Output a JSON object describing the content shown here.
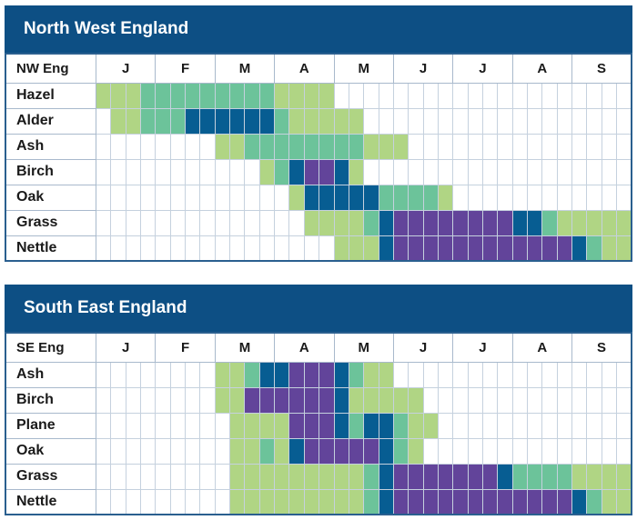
{
  "colors": {
    "header_bg": "#0d4f84",
    "level_0": "#ffffff",
    "level_1": "#b0d584",
    "level_2": "#6cc39a",
    "level_3": "#075d92",
    "level_4": "#62449a"
  },
  "chart_data": [
    {
      "type": "heatmap",
      "title": "North West England",
      "corner_label": "NW Eng",
      "months": [
        {
          "label": "J",
          "span": 4
        },
        {
          "label": "F",
          "span": 4
        },
        {
          "label": "M",
          "span": 4
        },
        {
          "label": "A",
          "span": 4
        },
        {
          "label": "M",
          "span": 4
        },
        {
          "label": "J",
          "span": 4
        },
        {
          "label": "J",
          "span": 4
        },
        {
          "label": "A",
          "span": 4
        },
        {
          "label": "S",
          "span": 4
        }
      ],
      "rows": [
        {
          "name": "Hazel",
          "levels": [
            1,
            1,
            1,
            2,
            2,
            2,
            2,
            2,
            2,
            2,
            2,
            2,
            1,
            1,
            1,
            1,
            0,
            0,
            0,
            0,
            0,
            0,
            0,
            0,
            0,
            0,
            0,
            0,
            0,
            0,
            0,
            0,
            0,
            0,
            0,
            0
          ]
        },
        {
          "name": "Alder",
          "levels": [
            0,
            1,
            1,
            2,
            2,
            2,
            3,
            3,
            3,
            3,
            3,
            3,
            2,
            1,
            1,
            1,
            1,
            1,
            0,
            0,
            0,
            0,
            0,
            0,
            0,
            0,
            0,
            0,
            0,
            0,
            0,
            0,
            0,
            0,
            0,
            0
          ]
        },
        {
          "name": "Ash",
          "levels": [
            0,
            0,
            0,
            0,
            0,
            0,
            0,
            0,
            1,
            1,
            2,
            2,
            2,
            2,
            2,
            2,
            2,
            2,
            1,
            1,
            1,
            0,
            0,
            0,
            0,
            0,
            0,
            0,
            0,
            0,
            0,
            0,
            0,
            0,
            0,
            0
          ]
        },
        {
          "name": "Birch",
          "levels": [
            0,
            0,
            0,
            0,
            0,
            0,
            0,
            0,
            0,
            0,
            0,
            1,
            2,
            3,
            4,
            4,
            3,
            1,
            0,
            0,
            0,
            0,
            0,
            0,
            0,
            0,
            0,
            0,
            0,
            0,
            0,
            0,
            0,
            0,
            0,
            0
          ]
        },
        {
          "name": "Oak",
          "levels": [
            0,
            0,
            0,
            0,
            0,
            0,
            0,
            0,
            0,
            0,
            0,
            0,
            0,
            1,
            3,
            3,
            3,
            3,
            3,
            2,
            2,
            2,
            2,
            1,
            0,
            0,
            0,
            0,
            0,
            0,
            0,
            0,
            0,
            0,
            0,
            0
          ]
        },
        {
          "name": "Grass",
          "levels": [
            0,
            0,
            0,
            0,
            0,
            0,
            0,
            0,
            0,
            0,
            0,
            0,
            0,
            0,
            1,
            1,
            1,
            1,
            2,
            3,
            4,
            4,
            4,
            4,
            4,
            4,
            4,
            4,
            3,
            3,
            2,
            1,
            1,
            1,
            1,
            1
          ]
        },
        {
          "name": "Nettle",
          "levels": [
            0,
            0,
            0,
            0,
            0,
            0,
            0,
            0,
            0,
            0,
            0,
            0,
            0,
            0,
            0,
            0,
            1,
            1,
            1,
            3,
            4,
            4,
            4,
            4,
            4,
            4,
            4,
            4,
            4,
            4,
            4,
            4,
            3,
            2,
            1,
            1
          ]
        }
      ]
    },
    {
      "type": "heatmap",
      "title": "South East England",
      "corner_label": "SE Eng",
      "months": [
        {
          "label": "J",
          "span": 4
        },
        {
          "label": "F",
          "span": 4
        },
        {
          "label": "M",
          "span": 4
        },
        {
          "label": "A",
          "span": 4
        },
        {
          "label": "M",
          "span": 4
        },
        {
          "label": "J",
          "span": 4
        },
        {
          "label": "J",
          "span": 4
        },
        {
          "label": "A",
          "span": 4
        },
        {
          "label": "S",
          "span": 4
        }
      ],
      "rows": [
        {
          "name": "Ash",
          "levels": [
            0,
            0,
            0,
            0,
            0,
            0,
            0,
            0,
            1,
            1,
            2,
            3,
            3,
            4,
            4,
            4,
            3,
            2,
            1,
            1,
            0,
            0,
            0,
            0,
            0,
            0,
            0,
            0,
            0,
            0,
            0,
            0,
            0,
            0,
            0,
            0
          ]
        },
        {
          "name": "Birch",
          "levels": [
            0,
            0,
            0,
            0,
            0,
            0,
            0,
            0,
            1,
            1,
            4,
            4,
            4,
            4,
            4,
            4,
            3,
            1,
            1,
            1,
            1,
            1,
            0,
            0,
            0,
            0,
            0,
            0,
            0,
            0,
            0,
            0,
            0,
            0,
            0,
            0
          ]
        },
        {
          "name": "Plane",
          "levels": [
            0,
            0,
            0,
            0,
            0,
            0,
            0,
            0,
            0,
            1,
            1,
            1,
            1,
            4,
            4,
            4,
            3,
            2,
            3,
            3,
            2,
            1,
            1,
            0,
            0,
            0,
            0,
            0,
            0,
            0,
            0,
            0,
            0,
            0,
            0,
            0
          ]
        },
        {
          "name": "Oak",
          "levels": [
            0,
            0,
            0,
            0,
            0,
            0,
            0,
            0,
            0,
            1,
            1,
            2,
            1,
            3,
            4,
            4,
            4,
            4,
            4,
            3,
            2,
            1,
            0,
            0,
            0,
            0,
            0,
            0,
            0,
            0,
            0,
            0,
            0,
            0,
            0,
            0
          ]
        },
        {
          "name": "Grass",
          "levels": [
            0,
            0,
            0,
            0,
            0,
            0,
            0,
            0,
            0,
            1,
            1,
            1,
            1,
            1,
            1,
            1,
            1,
            1,
            2,
            3,
            4,
            4,
            4,
            4,
            4,
            4,
            4,
            3,
            2,
            2,
            2,
            2,
            1,
            1,
            1,
            1
          ]
        },
        {
          "name": "Nettle",
          "levels": [
            0,
            0,
            0,
            0,
            0,
            0,
            0,
            0,
            0,
            1,
            1,
            1,
            1,
            1,
            1,
            1,
            1,
            1,
            2,
            3,
            4,
            4,
            4,
            4,
            4,
            4,
            4,
            4,
            4,
            4,
            4,
            4,
            3,
            2,
            1,
            1
          ]
        }
      ]
    }
  ]
}
